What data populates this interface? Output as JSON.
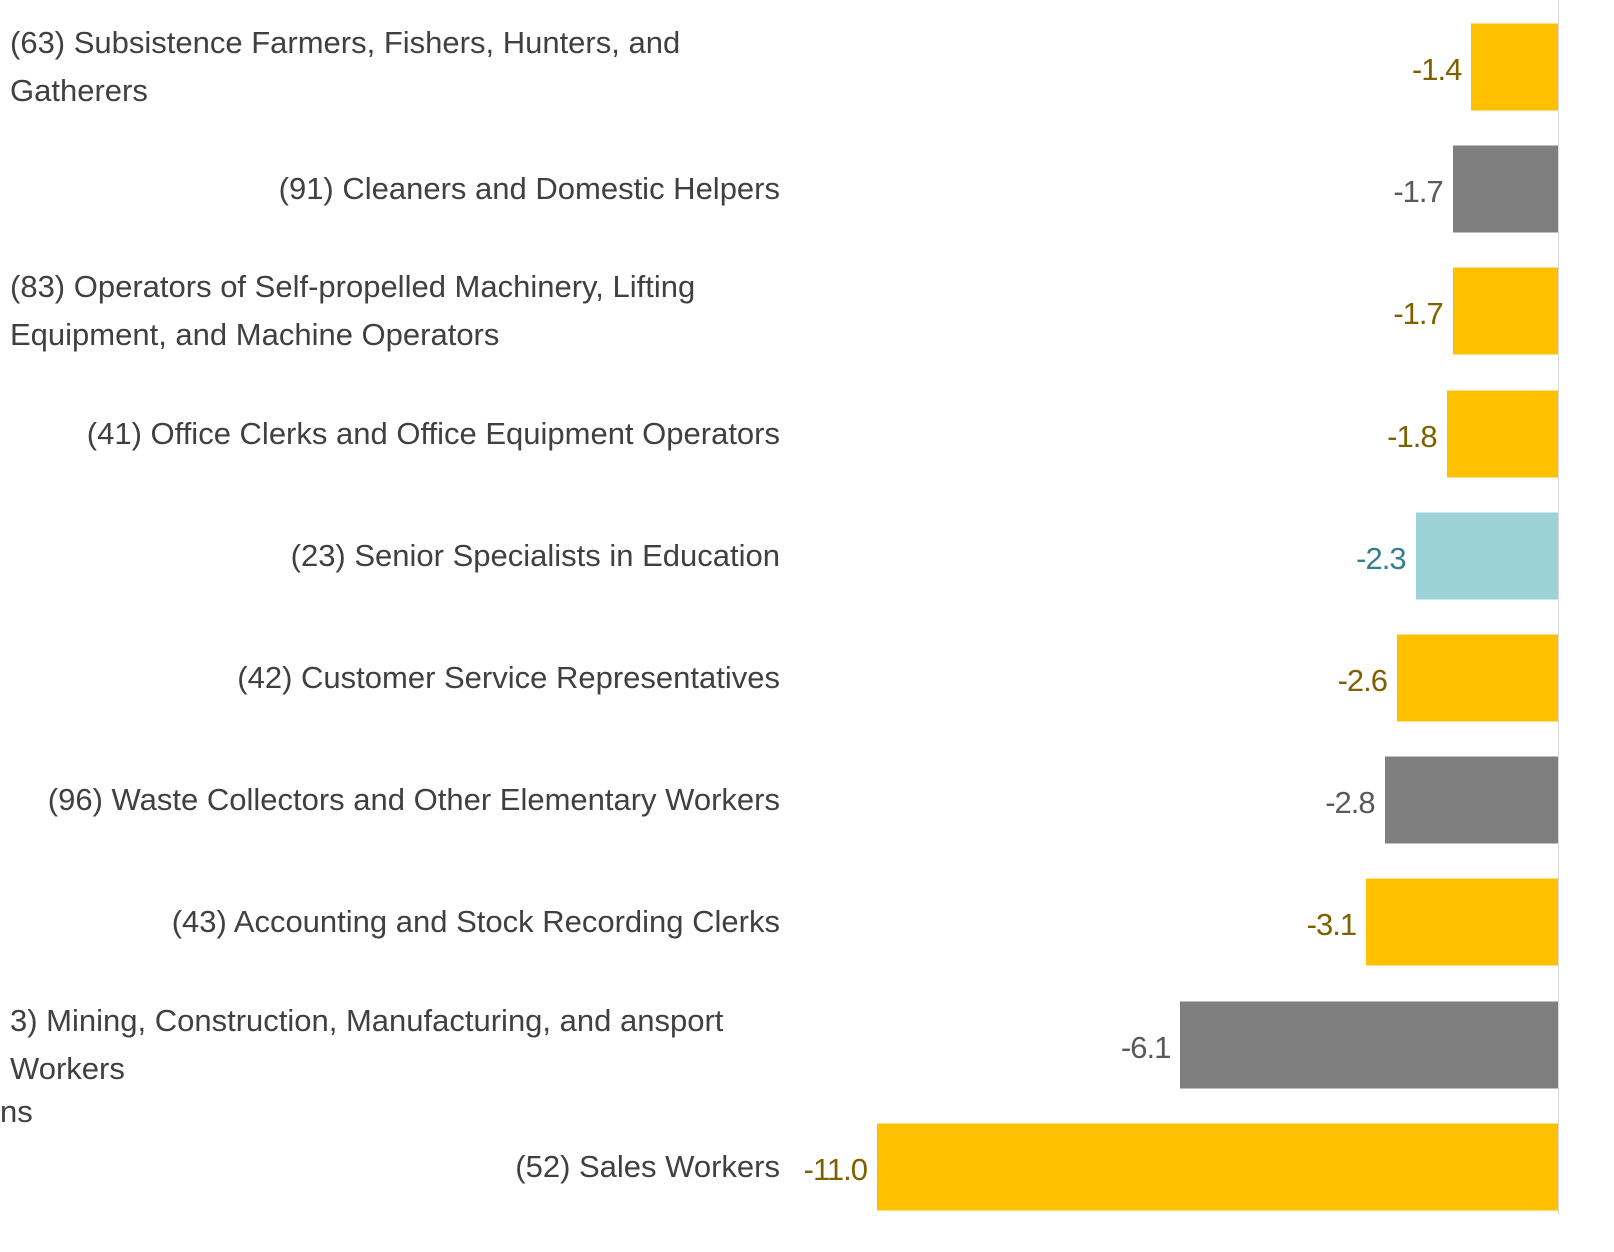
{
  "chart_data": {
    "type": "hbar",
    "categories": [
      "(63) Subsistence Farmers, Fishers, Hunters, and Gatherers",
      "(91) Cleaners and Domestic Helpers",
      "(83) Operators of Self-propelled Machinery, Lifting Equipment, and Machine Operators",
      "(41) Office Clerks and Office Equipment Operators",
      "(23) Senior Specialists in Education",
      "(42) Customer Service Representatives",
      "(96) Waste Collectors and Other Elementary Workers",
      "(43) Accounting and Stock Recording Clerks",
      "3) Mining, Construction, Manufacturing, and ansport Workers",
      "(52) Sales Workers"
    ],
    "values": [
      -1.4,
      -1.7,
      -1.7,
      -1.8,
      -2.3,
      -2.6,
      -2.8,
      -3.1,
      -6.1,
      -11
    ],
    "value_labels": [
      "-1.4",
      "-1.7",
      "-1.7",
      "-1.8",
      "-2.3",
      "-2.6",
      "-2.8",
      "-3.1",
      "-6.1",
      "-11.0"
    ],
    "colors": [
      "#ffc000",
      "#7f7f7f",
      "#ffc000",
      "#ffc000",
      "#9dd1d8",
      "#ffc000",
      "#7f7f7f",
      "#ffc000",
      "#7f7f7f",
      "#ffc000"
    ],
    "label_colors": [
      "#7f6000",
      "#595959",
      "#7f6000",
      "#7f6000",
      "#31808c",
      "#7f6000",
      "#595959",
      "#7f6000",
      "#595959",
      "#7f6000"
    ],
    "xlim": [
      -11,
      0
    ],
    "y_label": "ns"
  }
}
